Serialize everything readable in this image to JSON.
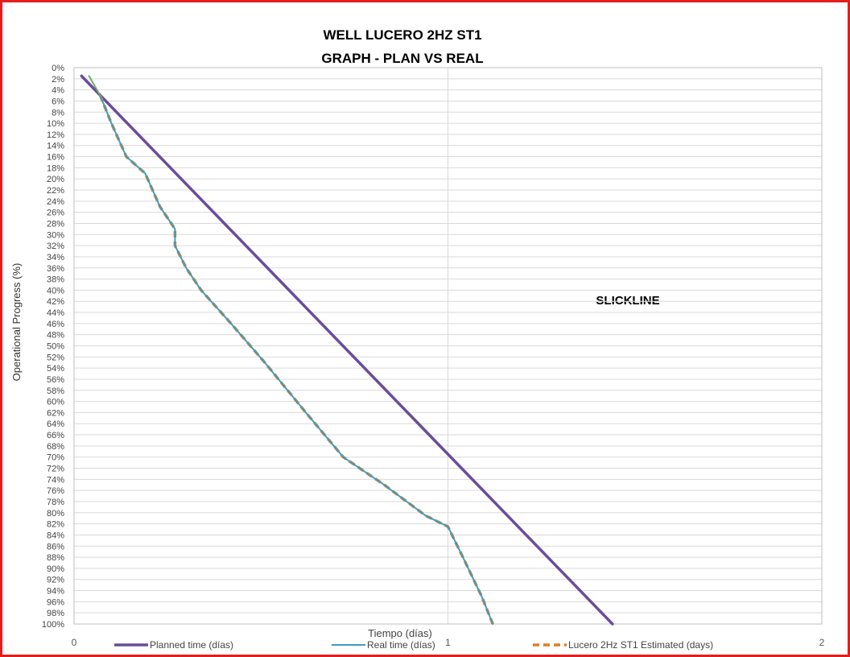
{
  "chart_data": {
    "type": "line",
    "title": "WELL LUCERO 2HZ ST1",
    "subtitle": "GRAPH  - PLAN VS REAL",
    "xlabel": "Tiempo (días)",
    "ylabel": "Operational Progress (%)",
    "xlim": [
      0,
      2
    ],
    "ylim": [
      0,
      100
    ],
    "y_inverted": true,
    "x_ticks": [
      "0",
      "1",
      "2"
    ],
    "y_ticks": [
      "0%",
      "2%",
      "4%",
      "6%",
      "8%",
      "10%",
      "12%",
      "14%",
      "16%",
      "18%",
      "20%",
      "22%",
      "24%",
      "26%",
      "28%",
      "30%",
      "32%",
      "34%",
      "36%",
      "38%",
      "40%",
      "42%",
      "44%",
      "46%",
      "48%",
      "50%",
      "52%",
      "54%",
      "56%",
      "58%",
      "60%",
      "62%",
      "64%",
      "66%",
      "68%",
      "70%",
      "72%",
      "74%",
      "76%",
      "78%",
      "80%",
      "82%",
      "84%",
      "86%",
      "88%",
      "90%",
      "92%",
      "94%",
      "96%",
      "98%",
      "100%"
    ],
    "grid": true,
    "legend_position": "bottom",
    "annotations": [
      "SLICKLINE"
    ],
    "colors": {
      "planned": "#6b4c9a",
      "real": "#3a9fbf",
      "estimated": "#e07b2a",
      "gridline": "#d9d9d9",
      "frame": "#e41e1e"
    },
    "series": [
      {
        "name": "Planned time (días)",
        "style": "solid-thick",
        "color": "#6b4c9a",
        "points": [
          [
            0.02,
            1.5
          ],
          [
            1.44,
            100
          ]
        ]
      },
      {
        "name": "Real time (días)",
        "style": "solid-thin",
        "color": "#3a9fbf",
        "points": [
          [
            0.04,
            1.5
          ],
          [
            0.07,
            5
          ],
          [
            0.1,
            10
          ],
          [
            0.14,
            16
          ],
          [
            0.19,
            19
          ],
          [
            0.23,
            25
          ],
          [
            0.27,
            29
          ],
          [
            0.27,
            32
          ],
          [
            0.3,
            36
          ],
          [
            0.34,
            40
          ],
          [
            0.42,
            46
          ],
          [
            0.51,
            53
          ],
          [
            0.62,
            62
          ],
          [
            0.72,
            70
          ],
          [
            0.83,
            75
          ],
          [
            0.94,
            80.5
          ],
          [
            1.0,
            82.5
          ],
          [
            1.04,
            88
          ],
          [
            1.09,
            95
          ],
          [
            1.12,
            100
          ]
        ]
      },
      {
        "name": "Lucero 2Hz ST1 Estimated (days)",
        "style": "dashed",
        "color": "#e07b2a",
        "points": [
          [
            0.07,
            5
          ],
          [
            0.1,
            10
          ],
          [
            0.14,
            16
          ],
          [
            0.19,
            19
          ],
          [
            0.23,
            25
          ],
          [
            0.27,
            29
          ],
          [
            0.27,
            32
          ],
          [
            0.3,
            36
          ],
          [
            0.34,
            40
          ],
          [
            0.42,
            46
          ],
          [
            0.51,
            53
          ],
          [
            0.62,
            62
          ],
          [
            0.72,
            70
          ],
          [
            0.83,
            75
          ],
          [
            0.94,
            80.5
          ],
          [
            1.0,
            82.5
          ],
          [
            1.04,
            88
          ],
          [
            1.09,
            95
          ],
          [
            1.12,
            100
          ]
        ]
      }
    ]
  }
}
